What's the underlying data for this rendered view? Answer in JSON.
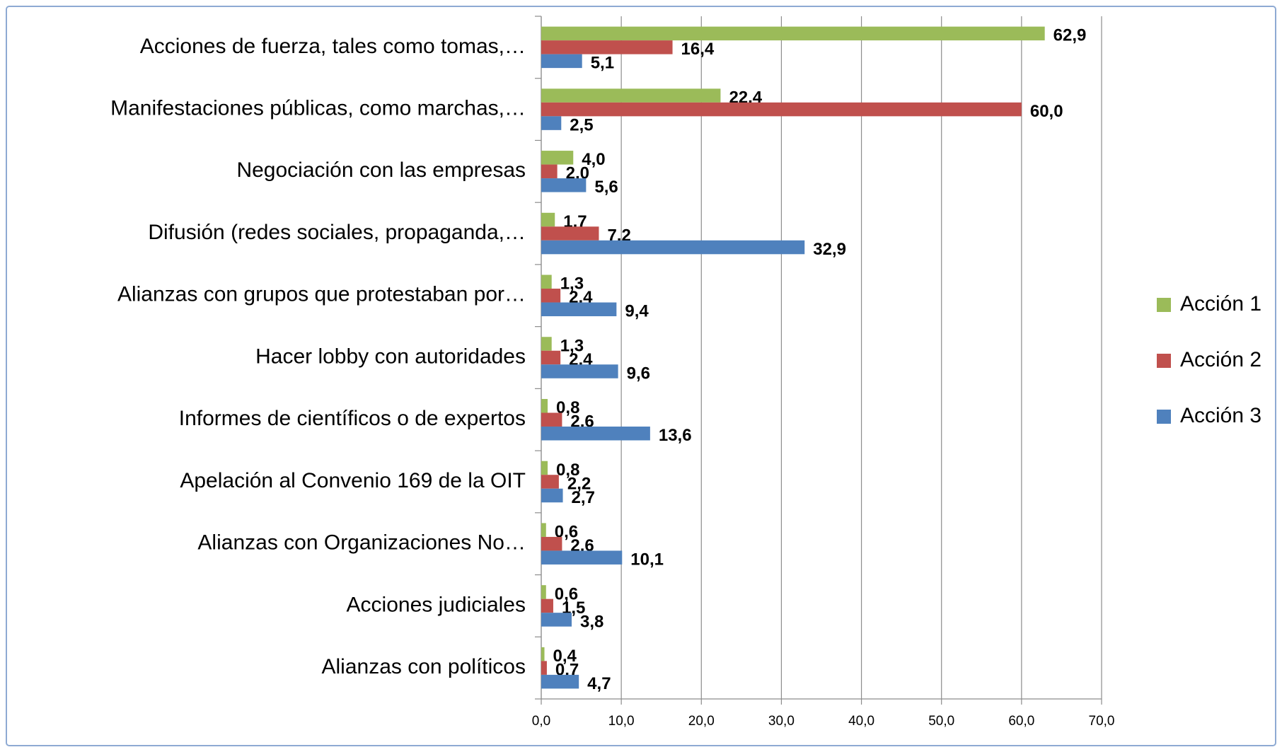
{
  "chart_data": {
    "type": "bar",
    "orientation": "horizontal",
    "categories": [
      "Acciones de fuerza, tales como tomas,…",
      "Manifestaciones públicas, como marchas,…",
      "Negociación con las empresas",
      "Difusión (redes sociales, propaganda,…",
      "Alianzas con grupos que protestaban por…",
      "Hacer lobby con autoridades",
      "Informes de científicos o de expertos",
      "Apelación al Convenio 169 de la OIT",
      "Alianzas con Organizaciones No…",
      "Acciones judiciales",
      "Alianzas con políticos"
    ],
    "series": [
      {
        "name": "Acción 1",
        "color": "#9bbb59",
        "values": [
          62.9,
          22.4,
          4.0,
          1.7,
          1.3,
          1.3,
          0.8,
          0.8,
          0.6,
          0.6,
          0.4
        ],
        "value_labels": [
          "62,9",
          "22,4",
          "4,0",
          "1,7",
          "1,3",
          "1,3",
          "0,8",
          "0,8",
          "0,6",
          "0,6",
          "0,4"
        ]
      },
      {
        "name": "Acción 2",
        "color": "#c0504d",
        "values": [
          16.4,
          60.0,
          2.0,
          7.2,
          2.4,
          2.4,
          2.6,
          2.2,
          2.6,
          1.5,
          0.7
        ],
        "value_labels": [
          "16,4",
          "60,0",
          "2,0",
          "7,2",
          "2,4",
          "2,4",
          "2,6",
          "2,2",
          "2,6",
          "1,5",
          "0,7"
        ]
      },
      {
        "name": "Acción 3",
        "color": "#4f81bd",
        "values": [
          5.1,
          2.5,
          5.6,
          32.9,
          9.4,
          9.6,
          13.6,
          2.7,
          10.1,
          3.8,
          4.7
        ],
        "value_labels": [
          "5,1",
          "2,5",
          "5,6",
          "32,9",
          "9,4",
          "9,6",
          "13,6",
          "2,7",
          "10,1",
          "3,8",
          "4,7"
        ]
      }
    ],
    "xlim": [
      0,
      70
    ],
    "xticks": [
      {
        "value": 0,
        "label": "0,0"
      },
      {
        "value": 10,
        "label": "10,0"
      },
      {
        "value": 20,
        "label": "20,0"
      },
      {
        "value": 30,
        "label": "30,0"
      },
      {
        "value": 40,
        "label": "40,0"
      },
      {
        "value": 50,
        "label": "50,0"
      },
      {
        "value": 60,
        "label": "60,0"
      },
      {
        "value": 70,
        "label": "70,0"
      }
    ],
    "grid": true,
    "legend": "right"
  }
}
